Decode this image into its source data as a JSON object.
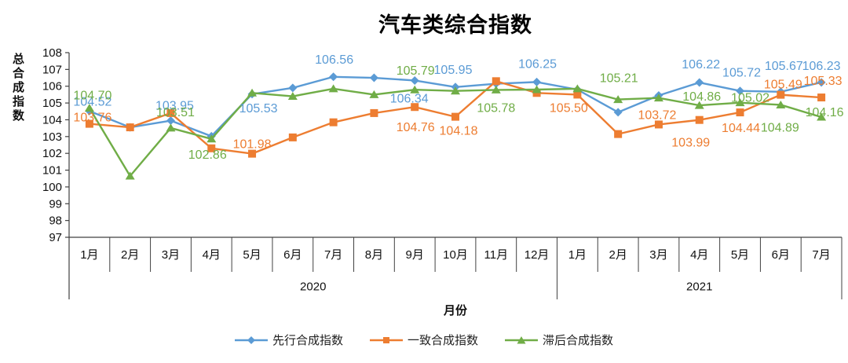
{
  "page": {
    "background": "#ffffff"
  },
  "chart_data": {
    "type": "line",
    "title": "汽车类综合指数",
    "xlabel": "月份",
    "ylabel": "总合成指数",
    "ylim": [
      97,
      108
    ],
    "ytick_step": 1,
    "yticks": [
      97,
      98,
      99,
      100,
      101,
      102,
      103,
      104,
      105,
      106,
      107,
      108
    ],
    "grid": false,
    "legend_position": "bottom",
    "axis_color": "#404040",
    "categories": [
      "1月",
      "2月",
      "3月",
      "4月",
      "5月",
      "6月",
      "7月",
      "8月",
      "9月",
      "10月",
      "11月",
      "12月",
      "1月",
      "2月",
      "3月",
      "4月",
      "5月",
      "6月",
      "7月"
    ],
    "year_groups": [
      {
        "label": "2020",
        "span": 12
      },
      {
        "label": "2021",
        "span": 7
      }
    ],
    "series": [
      {
        "name": "先行合成指数",
        "color": "#5B9BD5",
        "marker": "diamond",
        "values": [
          104.52,
          103.55,
          103.95,
          103.02,
          105.53,
          105.9,
          106.56,
          106.5,
          106.34,
          105.95,
          106.15,
          106.25,
          105.8,
          104.45,
          105.45,
          106.22,
          105.72,
          105.67,
          106.23
        ],
        "labels": [
          [
            "104.52",
            4,
            -12
          ],
          null,
          [
            "103.95",
            5,
            -19
          ],
          null,
          [
            "105.53",
            8,
            18
          ],
          null,
          [
            "106.56",
            1,
            -22
          ],
          null,
          [
            "106.34",
            -7,
            23
          ],
          [
            "105.95",
            -3,
            -22
          ],
          null,
          [
            "106.25",
            1,
            -23
          ],
          null,
          null,
          null,
          [
            "106.22",
            2,
            -23
          ],
          [
            "105.72",
            2,
            -23
          ],
          [
            "105.67",
            4,
            -33
          ],
          [
            "106.23",
            0,
            -21
          ]
        ]
      },
      {
        "name": "一致合成指数",
        "color": "#ED7D31",
        "marker": "square",
        "values": [
          103.76,
          103.55,
          104.4,
          102.3,
          101.98,
          102.95,
          103.85,
          104.4,
          104.76,
          104.18,
          106.3,
          105.6,
          105.5,
          103.15,
          103.72,
          103.99,
          104.44,
          105.49,
          105.33
        ],
        "labels": [
          [
            "103.76",
            4,
            -8
          ],
          null,
          null,
          null,
          [
            "101.98",
            0,
            -12
          ],
          null,
          null,
          null,
          [
            "104.76",
            1,
            26
          ],
          [
            "104.18",
            4,
            18
          ],
          null,
          null,
          [
            "105.50",
            -11,
            17
          ],
          null,
          [
            "103.72",
            -2,
            -12
          ],
          [
            "103.99",
            -11,
            29
          ],
          [
            "104.44",
            1,
            20
          ],
          [
            "105.49",
            3,
            -13
          ],
          [
            "105.33",
            2,
            -21
          ]
        ]
      },
      {
        "name": "滞后合成指数",
        "color": "#70AD47",
        "marker": "triangle",
        "values": [
          104.7,
          100.65,
          103.51,
          102.86,
          105.6,
          105.4,
          105.85,
          105.5,
          105.79,
          105.72,
          105.78,
          105.8,
          105.85,
          105.21,
          105.3,
          104.86,
          105.02,
          104.89,
          104.16
        ],
        "labels": [
          [
            "104.70",
            4,
            -16
          ],
          null,
          [
            "103.51",
            6,
            -20
          ],
          [
            "102.86",
            -5,
            20
          ],
          null,
          null,
          null,
          null,
          [
            "105.79",
            1,
            -24
          ],
          null,
          [
            "105.78",
            0,
            23
          ],
          null,
          null,
          [
            "105.21",
            1,
            -27
          ],
          null,
          [
            "104.86",
            3,
            -11
          ],
          [
            "105.02",
            13,
            -6
          ],
          [
            "104.89",
            -1,
            29
          ],
          [
            "104.16",
            4,
            -6
          ]
        ]
      }
    ]
  }
}
